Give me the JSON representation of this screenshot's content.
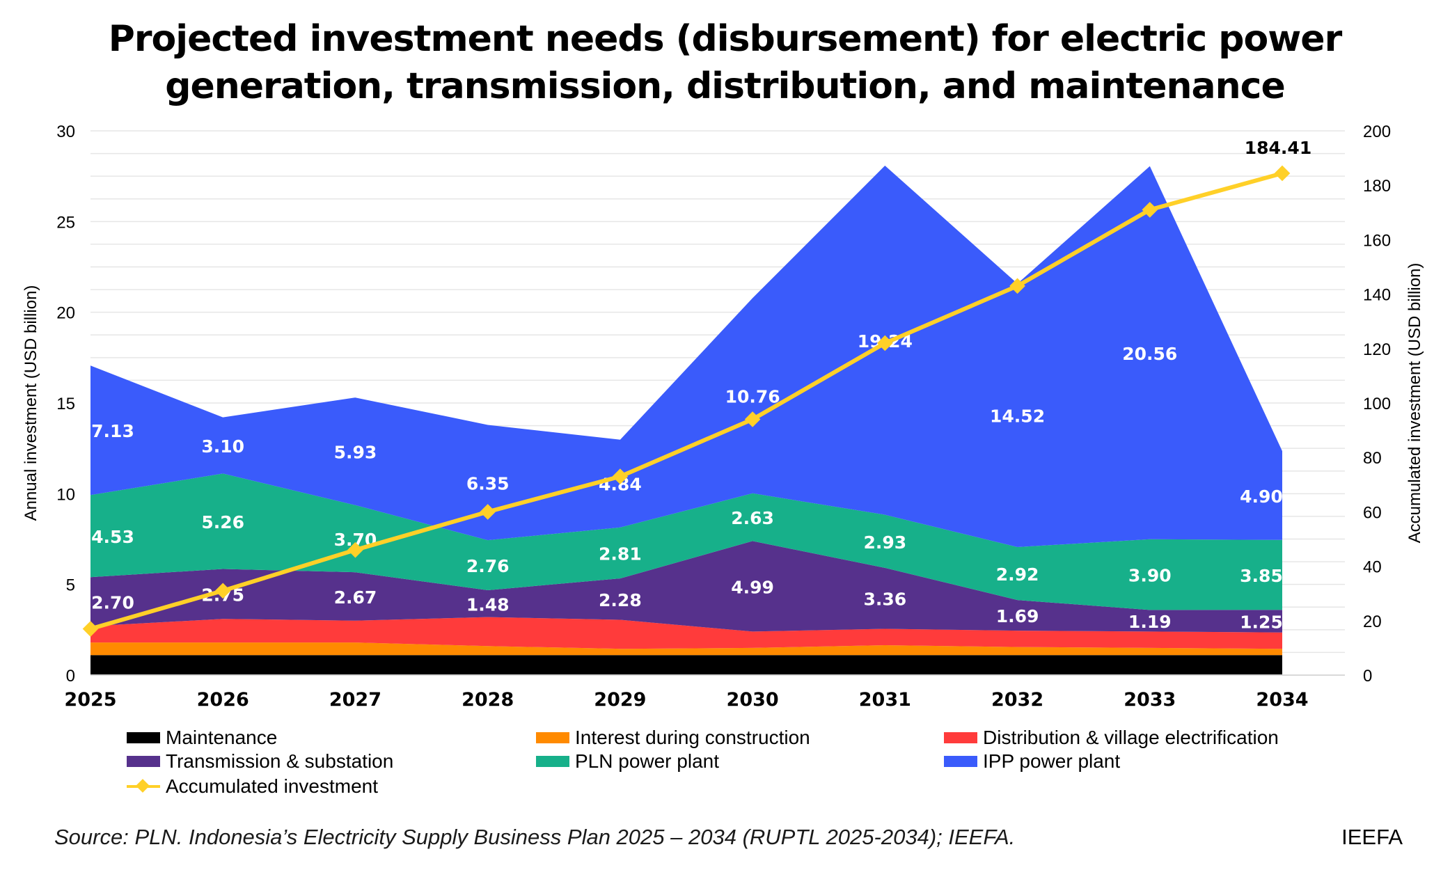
{
  "title_line1": "Projected investment needs (disbursement) for electric power",
  "title_line2": "generation, transmission, distribution, and maintenance",
  "source": "Source: PLN. Indonesia’s Electricity Supply Business Plan 2025 – 2034 (RUPTL 2025-2034); IEEFA.",
  "brand": "IEEFA",
  "chart_data": {
    "type": "area",
    "stacked": true,
    "categories": [
      "2025",
      "2026",
      "2027",
      "2028",
      "2029",
      "2030",
      "2031",
      "2032",
      "2033",
      "2034"
    ],
    "ylabel": "Annual investment (USD billion)",
    "y2label": "Accumulated investment (USD billion)",
    "ylim": [
      0,
      30
    ],
    "yticks": [
      "0",
      "5",
      "10",
      "15",
      "20",
      "25",
      "30"
    ],
    "y2lim": [
      0,
      200
    ],
    "y2ticks": [
      "0",
      "20",
      "40",
      "60",
      "80",
      "100",
      "120",
      "140",
      "160",
      "180",
      "200"
    ],
    "grid": true,
    "legend_position": "bottom",
    "series": [
      {
        "name": "Maintenance",
        "color": "#000000",
        "values": [
          1.1,
          1.1,
          1.1,
          1.1,
          1.1,
          1.1,
          1.1,
          1.1,
          1.1,
          1.1
        ],
        "labels": []
      },
      {
        "name": "Interest during construction",
        "color": "#ff8a00",
        "values": [
          0.7,
          0.7,
          0.7,
          0.5,
          0.35,
          0.4,
          0.55,
          0.45,
          0.4,
          0.35
        ],
        "labels": []
      },
      {
        "name": "Distribution & village electrification",
        "color": "#ff3b3b",
        "values": [
          0.9,
          1.3,
          1.2,
          1.6,
          1.6,
          0.9,
          0.9,
          0.9,
          0.9,
          0.9
        ],
        "labels": []
      },
      {
        "name": "Transmission & substation",
        "color": "#56318c",
        "values": [
          2.7,
          2.75,
          2.67,
          1.48,
          2.28,
          4.99,
          3.36,
          1.69,
          1.19,
          1.25
        ],
        "labels": [
          "2.70",
          "2.75",
          "2.67",
          "1.48",
          "2.28",
          "4.99",
          "3.36",
          "1.69",
          "1.19",
          "1.25"
        ]
      },
      {
        "name": "PLN power plant",
        "color": "#17b08a",
        "values": [
          4.53,
          5.26,
          3.7,
          2.76,
          2.81,
          2.63,
          2.93,
          2.92,
          3.9,
          3.85
        ],
        "labels": [
          "4.53",
          "5.26",
          "3.70",
          "2.76",
          "2.81",
          "2.63",
          "2.93",
          "2.92",
          "3.90",
          "3.85"
        ]
      },
      {
        "name": "IPP power plant",
        "color": "#3a5bfb",
        "values": [
          7.13,
          3.1,
          5.93,
          6.35,
          4.84,
          10.76,
          19.24,
          14.52,
          20.56,
          4.9
        ],
        "labels": [
          "7.13",
          "3.10",
          "5.93",
          "6.35",
          "4.84",
          "10.76",
          "19.24",
          "14.52",
          "20.56",
          "4.90"
        ]
      }
    ],
    "line_series": {
      "name": "Accumulated investment",
      "color": "#ffd028",
      "axis": "right",
      "values": [
        17,
        31,
        46,
        60,
        73,
        94,
        122,
        143,
        171,
        184.41
      ],
      "end_label": "184.41"
    }
  }
}
